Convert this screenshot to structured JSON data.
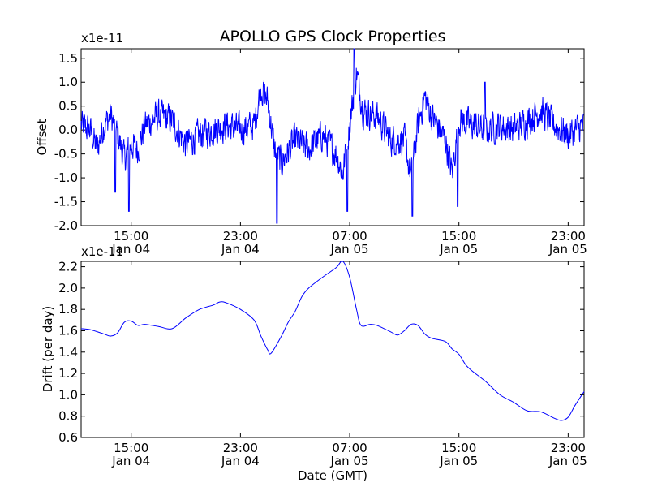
{
  "chart_data": [
    {
      "type": "line",
      "title": "APOLLO GPS Clock Properties",
      "ylabel": "Offset",
      "xlabel": "",
      "scale_label": "x1e-11",
      "ylim": [
        -2.0,
        1.7
      ],
      "yticks": [
        -2.0,
        -1.5,
        -1.0,
        -0.5,
        0.0,
        0.5,
        1.0,
        1.5
      ],
      "xlim": [
        "2005-01-04T11:20",
        "2005-01-06T00:10"
      ],
      "xticks": [
        {
          "time": "2005-01-04T15:00",
          "line1": "15:00",
          "line2": "Jan 04"
        },
        {
          "time": "2005-01-04T23:00",
          "line1": "23:00",
          "line2": "Jan 04"
        },
        {
          "time": "2005-01-05T07:00",
          "line1": "07:00",
          "line2": "Jan 05"
        },
        {
          "time": "2005-01-05T15:00",
          "line1": "15:00",
          "line2": "Jan 05"
        },
        {
          "time": "2005-01-05T23:00",
          "line1": "23:00",
          "line2": "Jan 05"
        }
      ],
      "series_color": "#0000ff",
      "anchor_points": [
        [
          "2005-01-04T11:20",
          0.1
        ],
        [
          "2005-01-04T12:00",
          0.0
        ],
        [
          "2005-01-04T12:30",
          -0.4
        ],
        [
          "2005-01-04T13:00",
          0.1
        ],
        [
          "2005-01-04T13:30",
          0.3
        ],
        [
          "2005-01-04T14:00",
          -0.1
        ],
        [
          "2005-01-04T14:30",
          -0.6
        ],
        [
          "2005-01-04T15:00",
          -0.3
        ],
        [
          "2005-01-04T15:30",
          -0.4
        ],
        [
          "2005-01-04T16:00",
          0.1
        ],
        [
          "2005-01-04T17:00",
          0.3
        ],
        [
          "2005-01-04T18:00",
          0.2
        ],
        [
          "2005-01-04T19:00",
          -0.3
        ],
        [
          "2005-01-04T20:00",
          -0.1
        ],
        [
          "2005-01-04T21:00",
          0.0
        ],
        [
          "2005-01-04T22:00",
          0.1
        ],
        [
          "2005-01-04T23:00",
          0.0
        ],
        [
          "2005-01-05T00:00",
          0.1
        ],
        [
          "2005-01-05T00:30",
          0.9
        ],
        [
          "2005-01-05T01:00",
          0.6
        ],
        [
          "2005-01-05T01:30",
          -0.4
        ],
        [
          "2005-01-05T02:00",
          -0.7
        ],
        [
          "2005-01-05T03:00",
          -0.2
        ],
        [
          "2005-01-05T04:00",
          -0.4
        ],
        [
          "2005-01-05T05:00",
          -0.1
        ],
        [
          "2005-01-05T06:00",
          -0.5
        ],
        [
          "2005-01-05T06:30",
          -0.9
        ],
        [
          "2005-01-05T07:00",
          0.1
        ],
        [
          "2005-01-05T07:30",
          1.2
        ],
        [
          "2005-01-05T08:00",
          0.4
        ],
        [
          "2005-01-05T09:00",
          0.3
        ],
        [
          "2005-01-05T10:00",
          -0.2
        ],
        [
          "2005-01-05T11:00",
          -0.2
        ],
        [
          "2005-01-05T11:30",
          -1.0
        ],
        [
          "2005-01-05T12:00",
          0.1
        ],
        [
          "2005-01-05T12:30",
          0.7
        ],
        [
          "2005-01-05T13:00",
          0.3
        ],
        [
          "2005-01-05T14:00",
          -0.2
        ],
        [
          "2005-01-05T14:30",
          -0.9
        ],
        [
          "2005-01-05T15:00",
          0.2
        ],
        [
          "2005-01-05T16:00",
          0.1
        ],
        [
          "2005-01-05T17:00",
          0.0
        ],
        [
          "2005-01-05T18:00",
          0.1
        ],
        [
          "2005-01-05T19:00",
          0.0
        ],
        [
          "2005-01-05T20:00",
          0.2
        ],
        [
          "2005-01-05T21:00",
          0.4
        ],
        [
          "2005-01-05T22:00",
          0.1
        ],
        [
          "2005-01-05T23:00",
          -0.1
        ],
        [
          "2005-01-06T00:10",
          0.1
        ]
      ],
      "extremes": [
        [
          "2005-01-04T13:50",
          -1.3
        ],
        [
          "2005-01-04T14:50",
          -1.7
        ],
        [
          "2005-01-05T01:40",
          -1.95
        ],
        [
          "2005-01-05T06:50",
          -1.7
        ],
        [
          "2005-01-05T07:20",
          1.7
        ],
        [
          "2005-01-05T11:35",
          -1.8
        ],
        [
          "2005-01-05T14:55",
          -1.6
        ],
        [
          "2005-01-05T16:55",
          1.0
        ]
      ]
    },
    {
      "type": "line",
      "title": "",
      "ylabel": "Drift (per day)",
      "xlabel": "Date (GMT)",
      "scale_label": "x1e-11",
      "ylim": [
        0.6,
        2.25
      ],
      "yticks": [
        0.6,
        0.8,
        1.0,
        1.2,
        1.4,
        1.6,
        1.8,
        2.0,
        2.2
      ],
      "xlim": [
        "2005-01-04T11:20",
        "2005-01-06T00:10"
      ],
      "xticks": [
        {
          "time": "2005-01-04T15:00",
          "line1": "15:00",
          "line2": "Jan 04"
        },
        {
          "time": "2005-01-04T23:00",
          "line1": "23:00",
          "line2": "Jan 04"
        },
        {
          "time": "2005-01-05T07:00",
          "line1": "07:00",
          "line2": "Jan 05"
        },
        {
          "time": "2005-01-05T15:00",
          "line1": "15:00",
          "line2": "Jan 05"
        },
        {
          "time": "2005-01-05T23:00",
          "line1": "23:00",
          "line2": "Jan 05"
        }
      ],
      "series_color": "#0000ff",
      "points": [
        [
          "2005-01-04T11:20",
          1.62
        ],
        [
          "2005-01-04T12:00",
          1.61
        ],
        [
          "2005-01-04T13:00",
          1.57
        ],
        [
          "2005-01-04T13:30",
          1.55
        ],
        [
          "2005-01-04T14:00",
          1.58
        ],
        [
          "2005-01-04T14:30",
          1.68
        ],
        [
          "2005-01-04T15:00",
          1.69
        ],
        [
          "2005-01-04T15:30",
          1.65
        ],
        [
          "2005-01-04T16:00",
          1.66
        ],
        [
          "2005-01-04T17:00",
          1.64
        ],
        [
          "2005-01-04T18:00",
          1.62
        ],
        [
          "2005-01-04T19:00",
          1.72
        ],
        [
          "2005-01-04T20:00",
          1.8
        ],
        [
          "2005-01-04T21:00",
          1.84
        ],
        [
          "2005-01-04T21:30",
          1.87
        ],
        [
          "2005-01-04T22:00",
          1.86
        ],
        [
          "2005-01-04T23:00",
          1.8
        ],
        [
          "2005-01-05T00:00",
          1.7
        ],
        [
          "2005-01-05T00:30",
          1.55
        ],
        [
          "2005-01-05T01:00",
          1.42
        ],
        [
          "2005-01-05T01:15",
          1.39
        ],
        [
          "2005-01-05T02:00",
          1.55
        ],
        [
          "2005-01-05T02:30",
          1.68
        ],
        [
          "2005-01-05T03:00",
          1.78
        ],
        [
          "2005-01-05T03:30",
          1.92
        ],
        [
          "2005-01-05T04:00",
          2.0
        ],
        [
          "2005-01-05T05:00",
          2.1
        ],
        [
          "2005-01-05T06:00",
          2.19
        ],
        [
          "2005-01-05T06:30",
          2.25
        ],
        [
          "2005-01-05T07:00",
          2.1
        ],
        [
          "2005-01-05T07:30",
          1.8
        ],
        [
          "2005-01-05T07:50",
          1.65
        ],
        [
          "2005-01-05T08:30",
          1.66
        ],
        [
          "2005-01-05T09:00",
          1.65
        ],
        [
          "2005-01-05T10:00",
          1.59
        ],
        [
          "2005-01-05T10:30",
          1.56
        ],
        [
          "2005-01-05T11:00",
          1.6
        ],
        [
          "2005-01-05T11:30",
          1.66
        ],
        [
          "2005-01-05T12:00",
          1.65
        ],
        [
          "2005-01-05T12:30",
          1.57
        ],
        [
          "2005-01-05T13:00",
          1.53
        ],
        [
          "2005-01-05T14:00",
          1.5
        ],
        [
          "2005-01-05T14:30",
          1.43
        ],
        [
          "2005-01-05T15:00",
          1.38
        ],
        [
          "2005-01-05T15:30",
          1.28
        ],
        [
          "2005-01-05T16:00",
          1.22
        ],
        [
          "2005-01-05T17:00",
          1.12
        ],
        [
          "2005-01-05T18:00",
          1.0
        ],
        [
          "2005-01-05T19:00",
          0.93
        ],
        [
          "2005-01-05T20:00",
          0.85
        ],
        [
          "2005-01-05T21:00",
          0.84
        ],
        [
          "2005-01-05T22:00",
          0.78
        ],
        [
          "2005-01-05T22:30",
          0.76
        ],
        [
          "2005-01-05T23:00",
          0.79
        ],
        [
          "2005-01-05T23:30",
          0.9
        ],
        [
          "2005-01-06T00:10",
          1.03
        ]
      ]
    }
  ]
}
